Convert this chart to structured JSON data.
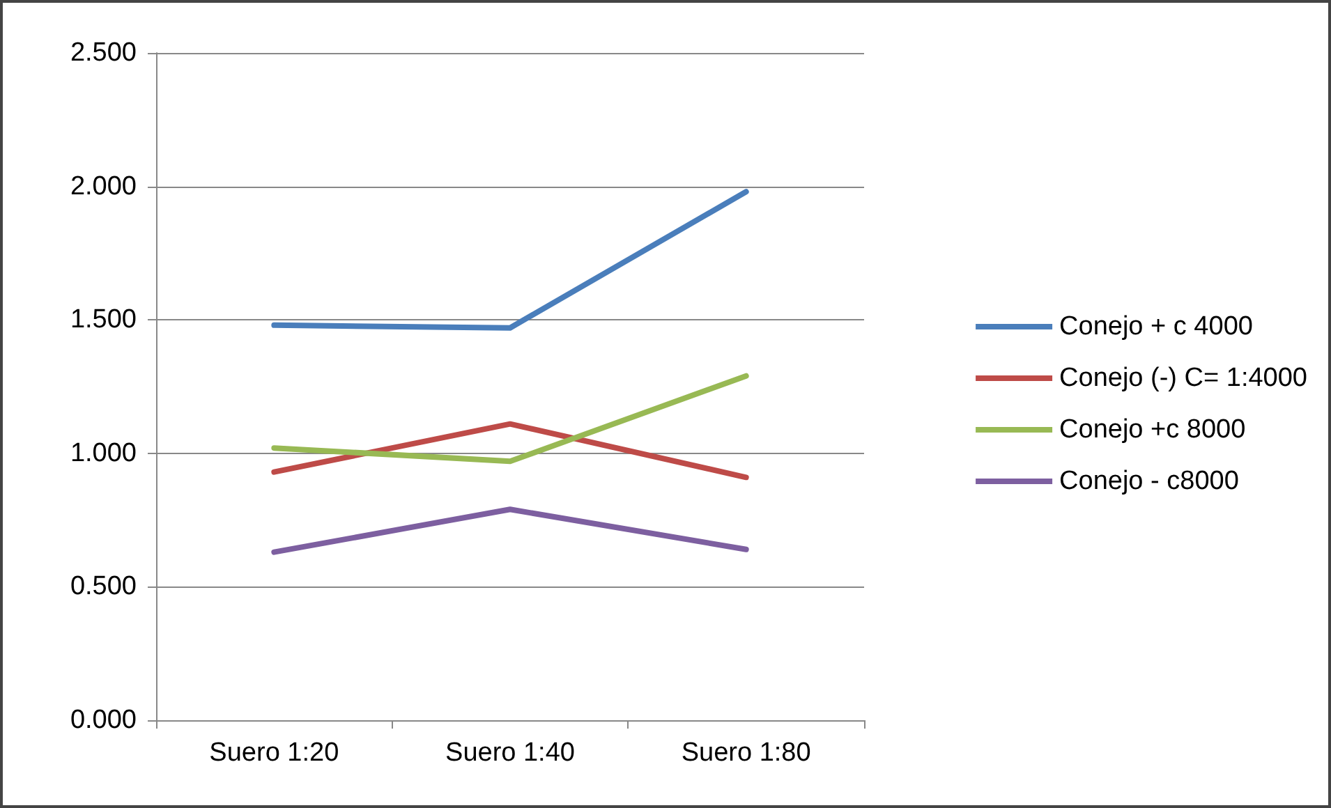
{
  "chart_data": {
    "type": "line",
    "categories": [
      "Suero 1:20",
      "Suero 1:40",
      "Suero 1:80"
    ],
    "series": [
      {
        "name": "Conejo + c 4000",
        "color": "#4a7ebb",
        "values": [
          1.48,
          1.47,
          1.98
        ]
      },
      {
        "name": "Conejo (-) C= 1:4000",
        "color": "#be4b48",
        "values": [
          0.93,
          1.11,
          0.91
        ]
      },
      {
        "name": "Conejo +c 8000",
        "color": "#98b954",
        "values": [
          1.02,
          0.97,
          1.29
        ]
      },
      {
        "name": "Conejo - c8000",
        "color": "#7d5fa0",
        "values": [
          0.63,
          0.79,
          0.64
        ]
      }
    ],
    "ylim": [
      0,
      2.5
    ],
    "yticks": [
      {
        "value": 0,
        "label": "0.000"
      },
      {
        "value": 0.5,
        "label": "0.500"
      },
      {
        "value": 1,
        "label": "1.000"
      },
      {
        "value": 1.5,
        "label": "1.500"
      },
      {
        "value": 2,
        "label": "2.000"
      },
      {
        "value": 2.5,
        "label": "2.500"
      }
    ],
    "grid": "y",
    "legend": "right",
    "marker": "none",
    "line_style": "solid"
  }
}
